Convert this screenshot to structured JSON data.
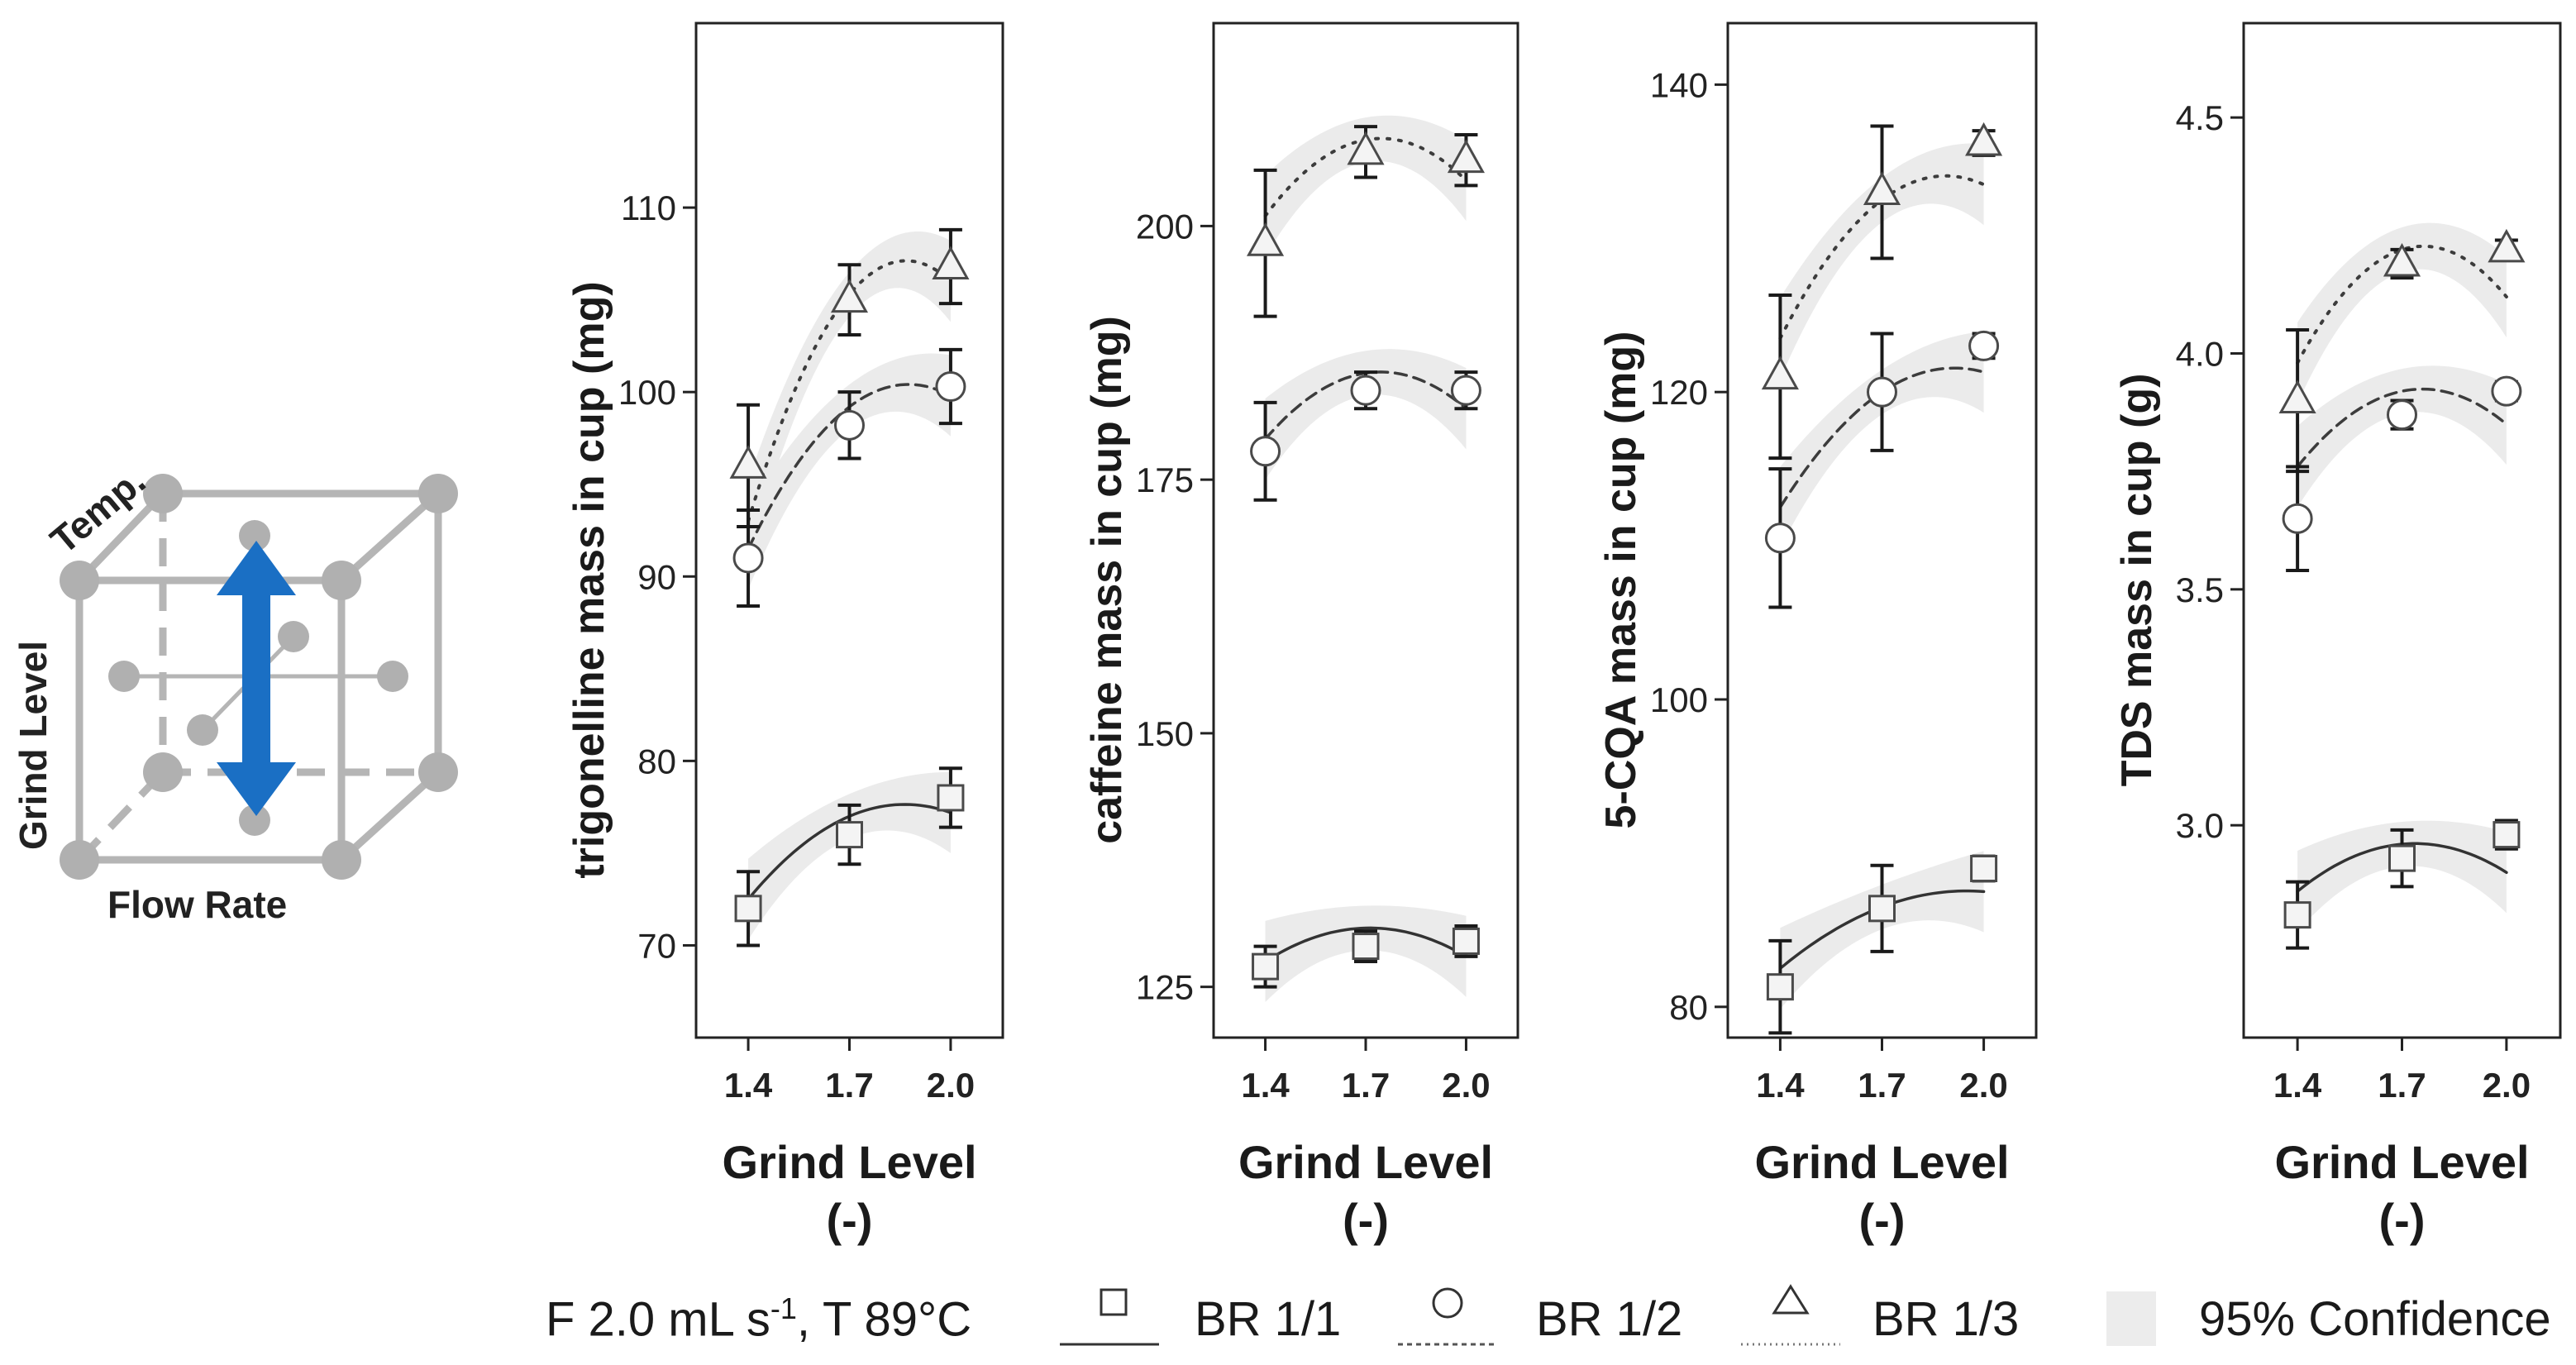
{
  "diagram": {
    "labels": {
      "temp": "Temp.",
      "grind": "Grind Level",
      "flow": "Flow Rate"
    },
    "colors": {
      "node": "#b0b0b0",
      "edge": "#b5b5b5",
      "arrow": "#1a6fc4"
    }
  },
  "legend": {
    "condition_main": "F 2.0 mL s",
    "condition_sup": "-1",
    "condition_rest": ", T 89°C",
    "series": [
      "BR 1/1",
      "BR 1/2",
      "BR 1/3"
    ],
    "confidence": "95% Confidence"
  },
  "chart_data": [
    {
      "type": "line",
      "ylabel": "trigonelline mass in cup (mg)",
      "xlabel": "Grind Level",
      "xunit": "(-)",
      "x": [
        1.4,
        1.7,
        2.0
      ],
      "x_ticks": [
        "1.4",
        "1.7",
        "2.0"
      ],
      "ylim": [
        65,
        120
      ],
      "y_ticks": [
        "70",
        "80",
        "90",
        "100",
        "110"
      ],
      "y_tick_values": [
        70,
        80,
        90,
        100,
        110
      ],
      "series": [
        {
          "marker": "square",
          "line": "solid",
          "values": [
            72,
            76,
            78
          ],
          "errors": [
            2,
            1.6,
            1.6
          ],
          "fit": [
            72.5,
            77.0,
            77.2
          ],
          "fit_extrema": 77.5
        },
        {
          "marker": "circle",
          "line": "dashed",
          "values": [
            91,
            98.2,
            100.3
          ],
          "errors": [
            2.6,
            1.8,
            2.0
          ],
          "fit": [
            91.5,
            99.2,
            99.8
          ],
          "fit_extrema": 100.2
        },
        {
          "marker": "triangle",
          "line": "dotted",
          "values": [
            96,
            105,
            106.8
          ],
          "errors": [
            3.3,
            1.9,
            2.0
          ],
          "fit": [
            93.0,
            105.3,
            106.0
          ],
          "fit_extrema": 106.5
        }
      ]
    },
    {
      "type": "line",
      "ylabel": "caffeine mass in cup (mg)",
      "xlabel": "Grind Level",
      "xunit": "(-)",
      "x": [
        1.4,
        1.7,
        2.0
      ],
      "x_ticks": [
        "1.4",
        "1.7",
        "2.0"
      ],
      "ylim": [
        120,
        220
      ],
      "y_ticks": [
        "125",
        "150",
        "175",
        "200"
      ],
      "y_tick_values": [
        125,
        150,
        175,
        200
      ],
      "series": [
        {
          "marker": "square",
          "line": "solid",
          "values": [
            127,
            129,
            129.5
          ],
          "errors": [
            2,
            1.5,
            1.5
          ],
          "fit": [
            127.5,
            130.8,
            128.0
          ],
          "fit_extrema": 130.8
        },
        {
          "marker": "circle",
          "line": "dashed",
          "values": [
            177.8,
            183.8,
            183.8
          ],
          "errors": [
            4.8,
            1.8,
            1.8
          ],
          "fit": [
            179.0,
            185.5,
            182.0
          ],
          "fit_extrema": 185.5
        },
        {
          "marker": "triangle",
          "line": "dotted",
          "values": [
            198.3,
            207.3,
            206.5
          ],
          "errors": [
            7.2,
            2.5,
            2.5
          ],
          "fit": [
            201.0,
            208.5,
            204.5
          ],
          "fit_extrema": 208.5
        }
      ]
    },
    {
      "type": "line",
      "ylabel": "5-CQA mass in cup (mg)",
      "xlabel": "Grind Level",
      "xunit": "(-)",
      "x": [
        1.4,
        1.7,
        2.0
      ],
      "x_ticks": [
        "1.4",
        "1.7",
        "2.0"
      ],
      "ylim": [
        78,
        144
      ],
      "y_ticks": [
        "80",
        "100",
        "120",
        "140"
      ],
      "y_tick_values": [
        80,
        100,
        120,
        140
      ],
      "series": [
        {
          "marker": "square",
          "line": "solid",
          "values": [
            81.3,
            86.4,
            89
          ],
          "errors": [
            3,
            2.8,
            0.8
          ],
          "fit": [
            82.5,
            86.5,
            87.5
          ],
          "fit_extrema": 87.5
        },
        {
          "marker": "circle",
          "line": "dashed",
          "values": [
            110.5,
            120,
            123
          ],
          "errors": [
            4.5,
            3.8,
            0.8
          ],
          "fit": [
            112.5,
            120.0,
            121.3
          ],
          "fit_extrema": 121.3
        },
        {
          "marker": "triangle",
          "line": "dotted",
          "values": [
            121,
            133,
            136.2
          ],
          "errors": [
            5.3,
            4.3,
            0.8
          ],
          "fit": [
            123.5,
            132.5,
            133.5
          ],
          "fit_extrema": 133.8
        }
      ]
    },
    {
      "type": "line",
      "ylabel": "TDS mass in cup (g)",
      "xlabel": "Grind Level",
      "xunit": "(-)",
      "x": [
        1.4,
        1.7,
        2.0
      ],
      "x_ticks": [
        "1.4",
        "1.7",
        "2.0"
      ],
      "ylim": [
        2.55,
        4.7
      ],
      "y_ticks": [
        "3.0",
        "3.5",
        "4.0",
        "4.5"
      ],
      "y_tick_values": [
        3.0,
        3.5,
        4.0,
        4.5
      ],
      "series": [
        {
          "marker": "square",
          "line": "solid",
          "values": [
            2.81,
            2.93,
            2.98
          ],
          "errors": [
            0.07,
            0.06,
            0.03
          ],
          "fit": [
            2.86,
            2.96,
            2.9
          ],
          "fit_extrema": 2.97
        },
        {
          "marker": "circle",
          "line": "dashed",
          "values": [
            3.65,
            3.87,
            3.92
          ],
          "errors": [
            0.11,
            0.03,
            0.02
          ],
          "fit": [
            3.76,
            3.92,
            3.85
          ],
          "fit_extrema": 3.93
        },
        {
          "marker": "triangle",
          "line": "dotted",
          "values": [
            3.9,
            4.19,
            4.22
          ],
          "errors": [
            0.15,
            0.03,
            0.02
          ],
          "fit": [
            3.98,
            4.22,
            4.12
          ],
          "fit_extrema": 4.22
        }
      ]
    }
  ]
}
